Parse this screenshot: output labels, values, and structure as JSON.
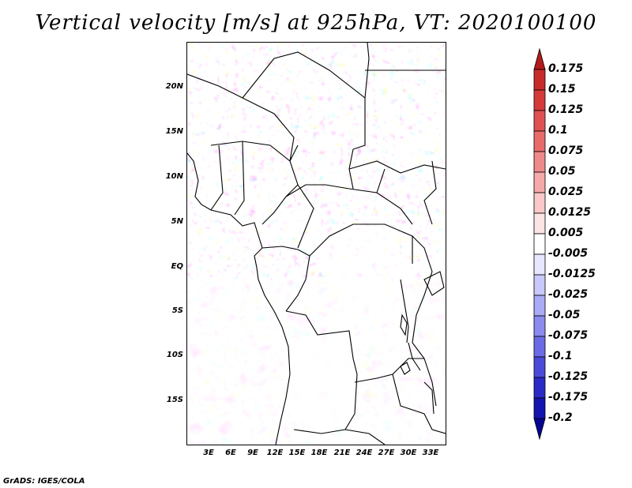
{
  "title": "Vertical velocity [m/s] at 925hPa, VT: 2020100100",
  "footer": "GrADS: IGES/COLA",
  "map": {
    "lon_labels": [
      "3E",
      "6E",
      "9E",
      "12E",
      "15E",
      "18E",
      "21E",
      "24E",
      "27E",
      "30E",
      "33E"
    ],
    "lat_labels": [
      "20N",
      "15N",
      "10N",
      "5N",
      "EQ",
      "5S",
      "10S",
      "15S"
    ]
  },
  "colorbar": {
    "labels": [
      "0.175",
      "0.15",
      "0.125",
      "0.1",
      "0.075",
      "0.05",
      "0.025",
      "0.0125",
      "0.005",
      "-0.005",
      "-0.0125",
      "-0.025",
      "-0.05",
      "-0.075",
      "-0.1",
      "-0.125",
      "-0.175",
      "-0.2"
    ],
    "colors": [
      "#b31b1b",
      "#c72a2a",
      "#d43a3a",
      "#e05252",
      "#e86b6b",
      "#ef8a8a",
      "#f5aaaa",
      "#fac8c8",
      "#fde4e4",
      "#ffffff",
      "#e6e6ff",
      "#c8c8fa",
      "#aaaaf5",
      "#8a8aef",
      "#6b6be6",
      "#4b4bd9",
      "#2a2ac7",
      "#1414b0",
      "#060690"
    ]
  }
}
